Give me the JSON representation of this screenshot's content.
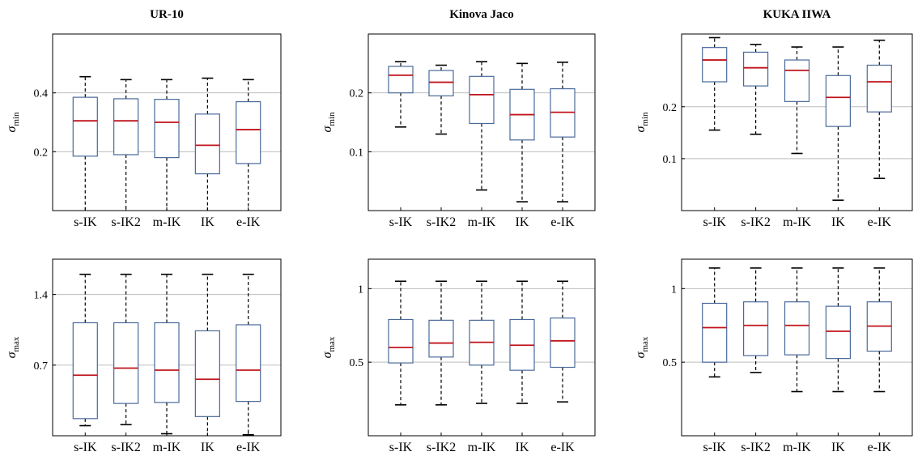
{
  "colors": {
    "box": "#4a6a9a",
    "median": "#c0141c",
    "grid": "#bdbdbd",
    "frame": "#000000",
    "whisker": "#000000"
  },
  "chart_data": [
    {
      "type": "box",
      "title": "UR-10",
      "ylabel": "σ",
      "ylabel_sub": "min",
      "grid": "horizontal",
      "categories": [
        "s-IK",
        "s-IK2",
        "m-IK",
        "IK",
        "e-IK"
      ],
      "ylim": [
        0.0,
        0.6
      ],
      "yticks": [
        0.2,
        0.4
      ],
      "ytick_labels": [
        "0.2",
        "0.4"
      ],
      "boxes": [
        {
          "min": 0.0,
          "q1": 0.185,
          "median": 0.305,
          "q3": 0.385,
          "max": 0.455
        },
        {
          "min": 0.0,
          "q1": 0.19,
          "median": 0.305,
          "q3": 0.38,
          "max": 0.445
        },
        {
          "min": 0.0,
          "q1": 0.18,
          "median": 0.3,
          "q3": 0.378,
          "max": 0.445
        },
        {
          "min": 0.0,
          "q1": 0.125,
          "median": 0.222,
          "q3": 0.328,
          "max": 0.45
        },
        {
          "min": 0.0,
          "q1": 0.16,
          "median": 0.275,
          "q3": 0.37,
          "max": 0.445
        }
      ]
    },
    {
      "type": "box",
      "title": "Kinova Jaco",
      "ylabel": "σ",
      "ylabel_sub": "min",
      "grid": "horizontal",
      "categories": [
        "s-IK",
        "s-IK2",
        "m-IK",
        "IK",
        "e-IK"
      ],
      "ylim": [
        0.0,
        0.3
      ],
      "yticks": [
        0.1,
        0.2
      ],
      "ytick_labels": [
        "0.1",
        "0.2"
      ],
      "boxes": [
        {
          "min": 0.142,
          "q1": 0.2,
          "median": 0.23,
          "q3": 0.245,
          "max": 0.253
        },
        {
          "min": 0.13,
          "q1": 0.195,
          "median": 0.218,
          "q3": 0.238,
          "max": 0.247
        },
        {
          "min": 0.035,
          "q1": 0.148,
          "median": 0.197,
          "q3": 0.228,
          "max": 0.253
        },
        {
          "min": 0.015,
          "q1": 0.12,
          "median": 0.163,
          "q3": 0.206,
          "max": 0.25
        },
        {
          "min": 0.015,
          "q1": 0.125,
          "median": 0.167,
          "q3": 0.207,
          "max": 0.252
        }
      ]
    },
    {
      "type": "box",
      "title": "KUKA IIWA",
      "ylabel": "σ",
      "ylabel_sub": "min",
      "grid": "horizontal",
      "categories": [
        "s-IK",
        "s-IK2",
        "m-IK",
        "IK",
        "e-IK"
      ],
      "ylim": [
        0.0,
        0.34
      ],
      "yticks": [
        0.1,
        0.2
      ],
      "ytick_labels": [
        "0.1",
        "0.2"
      ],
      "boxes": [
        {
          "min": 0.155,
          "q1": 0.248,
          "median": 0.29,
          "q3": 0.314,
          "max": 0.333
        },
        {
          "min": 0.147,
          "q1": 0.24,
          "median": 0.275,
          "q3": 0.305,
          "max": 0.32
        },
        {
          "min": 0.11,
          "q1": 0.21,
          "median": 0.27,
          "q3": 0.29,
          "max": 0.315
        },
        {
          "min": 0.02,
          "q1": 0.162,
          "median": 0.218,
          "q3": 0.26,
          "max": 0.315
        },
        {
          "min": 0.062,
          "q1": 0.19,
          "median": 0.248,
          "q3": 0.28,
          "max": 0.328
        }
      ]
    },
    {
      "type": "box",
      "title": "",
      "ylabel": "σ",
      "ylabel_sub": "max",
      "grid": "horizontal",
      "categories": [
        "s-IK",
        "s-IK2",
        "m-IK",
        "IK",
        "e-IK"
      ],
      "ylim": [
        0.0,
        1.75
      ],
      "yticks": [
        0.7,
        1.4
      ],
      "ytick_labels": [
        "0.7",
        "1.4"
      ],
      "boxes": [
        {
          "min": 0.1,
          "q1": 0.17,
          "median": 0.6,
          "q3": 1.12,
          "max": 1.6
        },
        {
          "min": 0.11,
          "q1": 0.32,
          "median": 0.67,
          "q3": 1.12,
          "max": 1.6
        },
        {
          "min": 0.02,
          "q1": 0.33,
          "median": 0.65,
          "q3": 1.12,
          "max": 1.6
        },
        {
          "min": -0.03,
          "q1": 0.19,
          "median": 0.56,
          "q3": 1.04,
          "max": 1.6
        },
        {
          "min": 0.01,
          "q1": 0.34,
          "median": 0.65,
          "q3": 1.1,
          "max": 1.6
        }
      ]
    },
    {
      "type": "box",
      "title": "",
      "ylabel": "σ",
      "ylabel_sub": "max",
      "grid": "horizontal",
      "categories": [
        "s-IK",
        "s-IK2",
        "m-IK",
        "IK",
        "e-IK"
      ],
      "ylim": [
        0.0,
        1.2
      ],
      "yticks": [
        0.5,
        1.0
      ],
      "ytick_labels": [
        "0.5",
        "1"
      ],
      "boxes": [
        {
          "min": 0.21,
          "q1": 0.495,
          "median": 0.6,
          "q3": 0.79,
          "max": 1.05
        },
        {
          "min": 0.21,
          "q1": 0.535,
          "median": 0.63,
          "q3": 0.785,
          "max": 1.05
        },
        {
          "min": 0.22,
          "q1": 0.48,
          "median": 0.635,
          "q3": 0.785,
          "max": 1.05
        },
        {
          "min": 0.22,
          "q1": 0.445,
          "median": 0.615,
          "q3": 0.79,
          "max": 1.05
        },
        {
          "min": 0.23,
          "q1": 0.465,
          "median": 0.645,
          "q3": 0.8,
          "max": 1.05
        }
      ]
    },
    {
      "type": "box",
      "title": "",
      "ylabel": "σ",
      "ylabel_sub": "max",
      "grid": "horizontal",
      "categories": [
        "s-IK",
        "s-IK2",
        "m-IK",
        "IK",
        "e-IK"
      ],
      "ylim": [
        0.0,
        1.2
      ],
      "yticks": [
        0.5,
        1.0
      ],
      "ytick_labels": [
        "0.5",
        "1"
      ],
      "boxes": [
        {
          "min": 0.4,
          "q1": 0.5,
          "median": 0.735,
          "q3": 0.9,
          "max": 1.14
        },
        {
          "min": 0.43,
          "q1": 0.545,
          "median": 0.75,
          "q3": 0.91,
          "max": 1.14
        },
        {
          "min": 0.3,
          "q1": 0.55,
          "median": 0.75,
          "q3": 0.91,
          "max": 1.14
        },
        {
          "min": 0.3,
          "q1": 0.525,
          "median": 0.71,
          "q3": 0.88,
          "max": 1.14
        },
        {
          "min": 0.3,
          "q1": 0.575,
          "median": 0.745,
          "q3": 0.91,
          "max": 1.14
        }
      ]
    }
  ]
}
